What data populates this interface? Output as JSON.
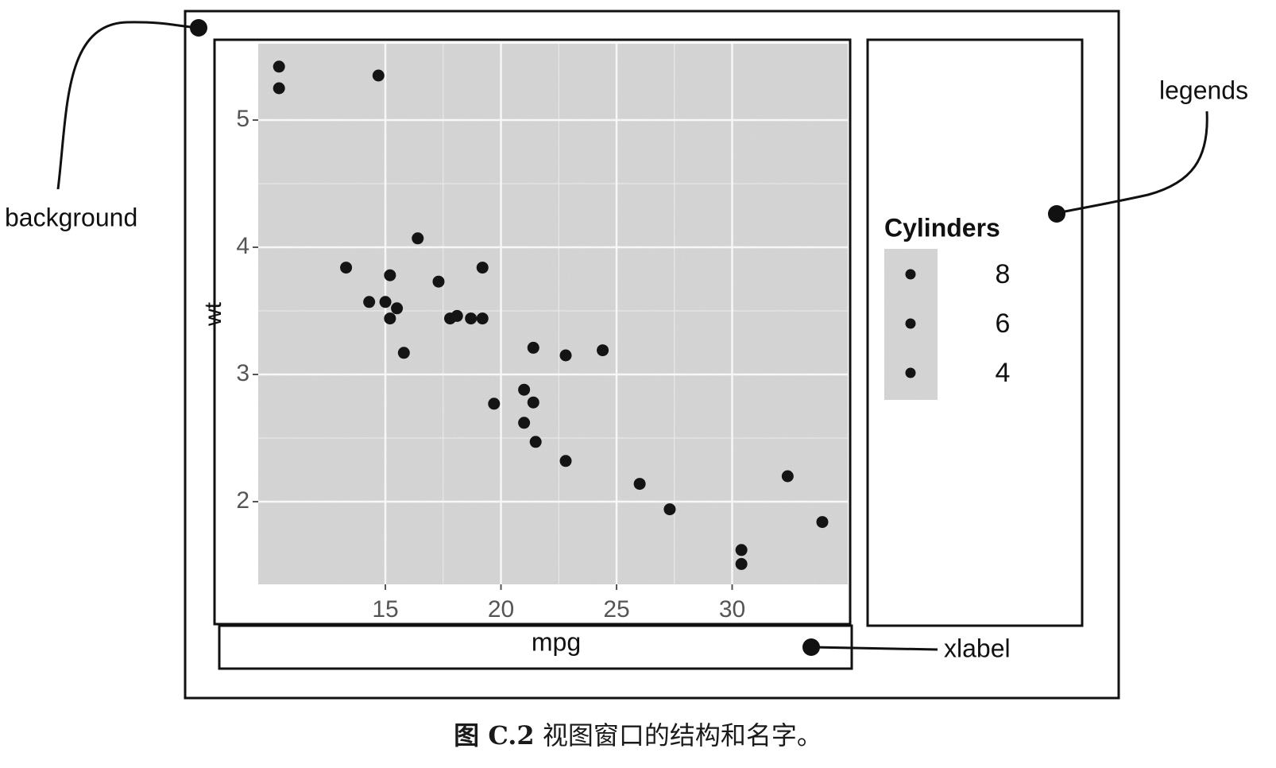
{
  "annotations": {
    "background": "background",
    "legends": "legends",
    "xlabel": "xlabel"
  },
  "caption": {
    "label": "图 C.2",
    "text": "视图窗口的结构和名字。"
  },
  "chart_data": {
    "type": "scatter",
    "xlabel": "mpg",
    "ylabel": "wt",
    "xlim": [
      9.5,
      35.0
    ],
    "ylim": [
      1.35,
      5.6
    ],
    "xticks": [
      15,
      20,
      25,
      30
    ],
    "yticks": [
      2,
      3,
      4,
      5
    ],
    "x_tick_labels": [
      "15",
      "20",
      "25",
      "30"
    ],
    "y_tick_labels": [
      "2",
      "3",
      "4",
      "5"
    ],
    "grid": true,
    "legend": {
      "title": "Cylinders",
      "position": "right",
      "entries": [
        "8",
        "6",
        "4"
      ]
    },
    "points": [
      {
        "x": 10.4,
        "y": 5.42
      },
      {
        "x": 10.4,
        "y": 5.25
      },
      {
        "x": 14.7,
        "y": 5.35
      },
      {
        "x": 16.4,
        "y": 4.07
      },
      {
        "x": 13.3,
        "y": 3.84
      },
      {
        "x": 15.2,
        "y": 3.78
      },
      {
        "x": 19.2,
        "y": 3.84
      },
      {
        "x": 17.3,
        "y": 3.73
      },
      {
        "x": 14.3,
        "y": 3.57
      },
      {
        "x": 15.0,
        "y": 3.57
      },
      {
        "x": 15.5,
        "y": 3.52
      },
      {
        "x": 15.2,
        "y": 3.44
      },
      {
        "x": 18.1,
        "y": 3.46
      },
      {
        "x": 17.8,
        "y": 3.44
      },
      {
        "x": 18.7,
        "y": 3.44
      },
      {
        "x": 19.2,
        "y": 3.44
      },
      {
        "x": 15.8,
        "y": 3.17
      },
      {
        "x": 21.4,
        "y": 3.21
      },
      {
        "x": 22.8,
        "y": 3.15
      },
      {
        "x": 24.4,
        "y": 3.19
      },
      {
        "x": 21.0,
        "y": 2.88
      },
      {
        "x": 21.4,
        "y": 2.78
      },
      {
        "x": 19.7,
        "y": 2.77
      },
      {
        "x": 21.0,
        "y": 2.62
      },
      {
        "x": 21.5,
        "y": 2.47
      },
      {
        "x": 22.8,
        "y": 2.32
      },
      {
        "x": 26.0,
        "y": 2.14
      },
      {
        "x": 27.3,
        "y": 1.94
      },
      {
        "x": 32.4,
        "y": 2.2
      },
      {
        "x": 33.9,
        "y": 1.84
      },
      {
        "x": 30.4,
        "y": 1.62
      },
      {
        "x": 30.4,
        "y": 1.51
      }
    ]
  }
}
